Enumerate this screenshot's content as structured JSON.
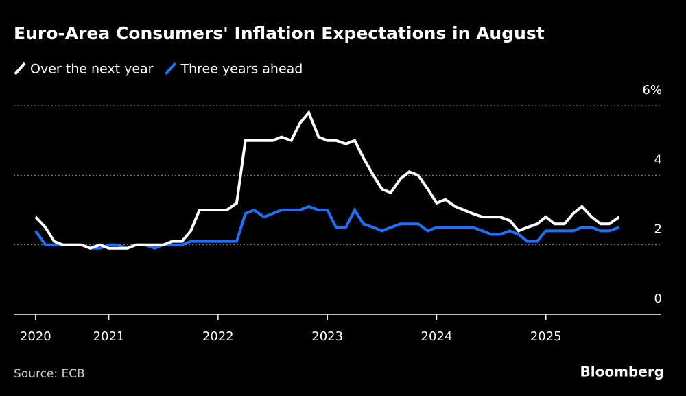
{
  "chart_data": {
    "type": "line",
    "title": "Euro-Area Consumers' Inflation Expectations in August",
    "source": "Source: ECB",
    "brand": "Bloomberg",
    "x": [
      2020.33,
      2020.42,
      2020.5,
      2020.58,
      2020.67,
      2020.75,
      2020.83,
      2020.92,
      2021,
      2021.08,
      2021.17,
      2021.25,
      2021.33,
      2021.42,
      2021.5,
      2021.58,
      2021.67,
      2021.75,
      2021.83,
      2021.92,
      2022,
      2022.08,
      2022.17,
      2022.25,
      2022.33,
      2022.42,
      2022.5,
      2022.58,
      2022.67,
      2022.75,
      2022.83,
      2022.92,
      2023,
      2023.08,
      2023.17,
      2023.25,
      2023.33,
      2023.42,
      2023.5,
      2023.58,
      2023.67,
      2023.75,
      2023.83,
      2023.92,
      2024,
      2024.08,
      2024.17,
      2024.25,
      2024.33,
      2024.42,
      2024.5,
      2024.58,
      2024.67,
      2024.75,
      2024.83,
      2024.92,
      2025,
      2025.08,
      2025.17,
      2025.25,
      2025.33,
      2025.42,
      2025.5,
      2025.58,
      2025.67
    ],
    "series": [
      {
        "name": "Over the next year",
        "color": "#ffffff",
        "values": [
          2.8,
          2.5,
          2.1,
          2.0,
          2.0,
          2.0,
          1.9,
          2.0,
          1.9,
          1.9,
          1.9,
          2.0,
          2.0,
          2.0,
          2.0,
          2.1,
          2.1,
          2.4,
          3.0,
          3.0,
          3.0,
          3.0,
          3.2,
          5.0,
          5.0,
          5.0,
          5.0,
          5.1,
          5.0,
          5.5,
          5.8,
          5.1,
          5.0,
          5.0,
          4.9,
          5.0,
          4.5,
          4.0,
          3.6,
          3.5,
          3.9,
          4.1,
          4.0,
          3.6,
          3.2,
          3.3,
          3.1,
          3.0,
          2.9,
          2.8,
          2.8,
          2.8,
          2.7,
          2.4,
          2.5,
          2.6,
          2.8,
          2.6,
          2.6,
          2.9,
          3.1,
          2.8,
          2.6,
          2.6,
          2.8
        ]
      },
      {
        "name": "Three years ahead",
        "color": "#1f6fff",
        "values": [
          2.4,
          2.0,
          2.0,
          2.0,
          2.0,
          2.0,
          1.9,
          1.9,
          2.0,
          2.0,
          1.9,
          2.0,
          2.0,
          1.9,
          2.0,
          2.0,
          2.0,
          2.1,
          2.1,
          2.1,
          2.1,
          2.1,
          2.1,
          2.9,
          3.0,
          2.8,
          2.9,
          3.0,
          3.0,
          3.0,
          3.1,
          3.0,
          3.0,
          2.5,
          2.5,
          3.0,
          2.6,
          2.5,
          2.4,
          2.5,
          2.6,
          2.6,
          2.6,
          2.4,
          2.5,
          2.5,
          2.5,
          2.5,
          2.5,
          2.4,
          2.3,
          2.3,
          2.4,
          2.3,
          2.1,
          2.1,
          2.4,
          2.4,
          2.4,
          2.4,
          2.5,
          2.5,
          2.4,
          2.4,
          2.5
        ]
      }
    ],
    "xlim": [
      2020.13,
      2026.05
    ],
    "xticks": [
      {
        "value": 2020.33,
        "label": "2020"
      },
      2021,
      2022,
      2023,
      2024,
      2025
    ],
    "ylim": [
      0,
      6
    ],
    "yticks": [
      0,
      2,
      4,
      {
        "value": 6,
        "label": "6%"
      }
    ],
    "grid": true
  }
}
